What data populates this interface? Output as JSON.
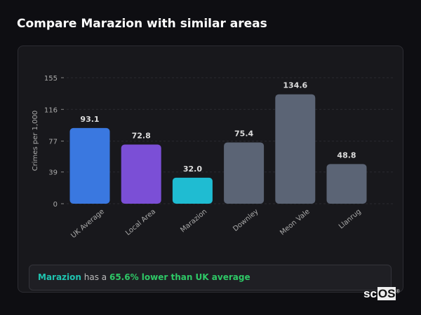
{
  "title": "Compare Marazion with similar areas",
  "chart_data": {
    "type": "bar",
    "ylabel": "Crimes per 1,000",
    "xlabel": "",
    "ylim": [
      0,
      155
    ],
    "yticks": [
      0,
      39,
      77,
      116,
      155
    ],
    "grid": true,
    "categories": [
      "UK Average",
      "Local Area",
      "Marazion",
      "Downley",
      "Meon Vale",
      "Llanrug"
    ],
    "values": [
      93.1,
      72.8,
      32.0,
      75.4,
      134.6,
      48.8
    ],
    "labels": [
      "93.1",
      "72.8",
      "32.0",
      "75.4",
      "134.6",
      "48.8"
    ],
    "colors": [
      "#3a78e0",
      "#7b4fd6",
      "#1fbcd2",
      "#5b6475",
      "#5b6475",
      "#5b6475"
    ]
  },
  "summary": {
    "area": "Marazion",
    "middle": " has a ",
    "highlight": "65.6% lower than UK average"
  },
  "logo": {
    "prefix": "sc",
    "boxed": "OS",
    "mark": "®"
  }
}
